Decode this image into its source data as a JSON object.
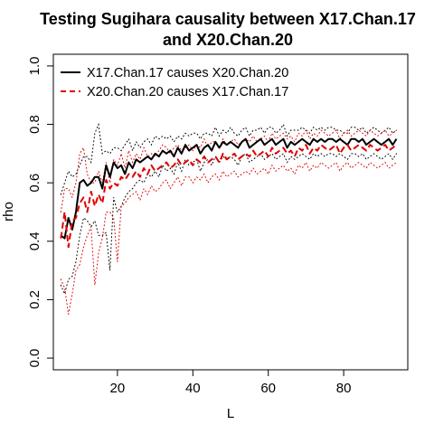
{
  "chart_data": {
    "type": "line",
    "title": "Testing Sugihara causality between  X17.Chan.17",
    "title_line2": "and X20.Chan.20",
    "xlabel": "L",
    "ylabel": "rho",
    "xlim": [
      3,
      97
    ],
    "ylim": [
      -0.04,
      1.04
    ],
    "xticks": [
      20,
      40,
      60,
      80
    ],
    "yticks": [
      0.0,
      0.2,
      0.4,
      0.6,
      0.8,
      1.0
    ],
    "xtick_labels": [
      "20",
      "40",
      "60",
      "80"
    ],
    "ytick_labels": [
      "0.0",
      "0.2",
      "0.4",
      "0.6",
      "0.8",
      "1.0"
    ],
    "grid": false,
    "legend_position": "top-left",
    "x": [
      5,
      6,
      7,
      8,
      9,
      10,
      11,
      12,
      13,
      14,
      15,
      16,
      17,
      18,
      19,
      20,
      21,
      22,
      23,
      24,
      25,
      26,
      27,
      28,
      29,
      30,
      31,
      32,
      33,
      34,
      35,
      36,
      37,
      38,
      39,
      40,
      41,
      42,
      43,
      44,
      45,
      46,
      47,
      48,
      49,
      50,
      51,
      52,
      53,
      54,
      55,
      56,
      57,
      58,
      59,
      60,
      61,
      62,
      63,
      64,
      65,
      66,
      67,
      68,
      69,
      70,
      71,
      72,
      73,
      74,
      75,
      76,
      77,
      78,
      79,
      80,
      81,
      82,
      83,
      84,
      85,
      86,
      87,
      88,
      89,
      90,
      91,
      92,
      93,
      94
    ],
    "series": [
      {
        "name": "X17.Chan.17 causes X20.Chan.20",
        "color": "#000000",
        "style": "solid",
        "mean": [
          0.42,
          0.41,
          0.48,
          0.44,
          0.5,
          0.6,
          0.61,
          0.59,
          0.6,
          0.62,
          0.62,
          0.58,
          0.66,
          0.62,
          0.67,
          0.65,
          0.66,
          0.63,
          0.67,
          0.65,
          0.68,
          0.67,
          0.68,
          0.69,
          0.68,
          0.7,
          0.69,
          0.71,
          0.7,
          0.71,
          0.69,
          0.72,
          0.7,
          0.73,
          0.71,
          0.72,
          0.73,
          0.7,
          0.72,
          0.73,
          0.71,
          0.74,
          0.72,
          0.74,
          0.73,
          0.74,
          0.73,
          0.72,
          0.74,
          0.75,
          0.72,
          0.73,
          0.74,
          0.75,
          0.73,
          0.74,
          0.75,
          0.73,
          0.74,
          0.75,
          0.72,
          0.74,
          0.73,
          0.74,
          0.75,
          0.74,
          0.73,
          0.75,
          0.74,
          0.75,
          0.74,
          0.75,
          0.75,
          0.74,
          0.75,
          0.74,
          0.73,
          0.75,
          0.75,
          0.74,
          0.75,
          0.73,
          0.74,
          0.75,
          0.74,
          0.73,
          0.74,
          0.75,
          0.73,
          0.75
        ],
        "upper": [
          0.56,
          0.6,
          0.64,
          0.62,
          0.63,
          0.66,
          0.69,
          0.69,
          0.67,
          0.77,
          0.8,
          0.7,
          0.71,
          0.7,
          0.72,
          0.72,
          0.71,
          0.73,
          0.75,
          0.71,
          0.74,
          0.72,
          0.74,
          0.75,
          0.73,
          0.76,
          0.75,
          0.76,
          0.75,
          0.76,
          0.74,
          0.76,
          0.75,
          0.77,
          0.76,
          0.77,
          0.77,
          0.75,
          0.77,
          0.77,
          0.76,
          0.79,
          0.76,
          0.78,
          0.77,
          0.79,
          0.77,
          0.76,
          0.78,
          0.79,
          0.76,
          0.78,
          0.78,
          0.79,
          0.77,
          0.79,
          0.79,
          0.77,
          0.78,
          0.8,
          0.76,
          0.78,
          0.78,
          0.78,
          0.79,
          0.78,
          0.77,
          0.79,
          0.78,
          0.79,
          0.78,
          0.79,
          0.79,
          0.78,
          0.78,
          0.77,
          0.77,
          0.79,
          0.79,
          0.78,
          0.79,
          0.77,
          0.78,
          0.79,
          0.78,
          0.77,
          0.78,
          0.79,
          0.77,
          0.78
        ],
        "lower": [
          0.25,
          0.22,
          0.27,
          0.28,
          0.33,
          0.42,
          0.48,
          0.47,
          0.45,
          0.47,
          0.42,
          0.42,
          0.43,
          0.3,
          0.55,
          0.5,
          0.52,
          0.55,
          0.57,
          0.58,
          0.6,
          0.61,
          0.6,
          0.63,
          0.62,
          0.64,
          0.62,
          0.66,
          0.64,
          0.65,
          0.63,
          0.67,
          0.64,
          0.68,
          0.66,
          0.67,
          0.68,
          0.64,
          0.67,
          0.68,
          0.66,
          0.69,
          0.67,
          0.69,
          0.68,
          0.69,
          0.68,
          0.66,
          0.69,
          0.7,
          0.67,
          0.68,
          0.69,
          0.7,
          0.68,
          0.69,
          0.7,
          0.68,
          0.69,
          0.7,
          0.67,
          0.69,
          0.68,
          0.69,
          0.7,
          0.69,
          0.68,
          0.7,
          0.69,
          0.7,
          0.69,
          0.7,
          0.7,
          0.69,
          0.7,
          0.69,
          0.68,
          0.7,
          0.7,
          0.69,
          0.7,
          0.68,
          0.69,
          0.7,
          0.69,
          0.68,
          0.69,
          0.7,
          0.68,
          0.7
        ]
      },
      {
        "name": "X20.Chan.20 causes X17.Chan.17",
        "color": "#DF0000",
        "style": "dashed",
        "mean": [
          0.41,
          0.5,
          0.38,
          0.47,
          0.48,
          0.53,
          0.55,
          0.5,
          0.57,
          0.52,
          0.56,
          0.53,
          0.61,
          0.58,
          0.6,
          0.59,
          0.62,
          0.61,
          0.63,
          0.62,
          0.64,
          0.62,
          0.65,
          0.63,
          0.66,
          0.64,
          0.65,
          0.66,
          0.67,
          0.65,
          0.66,
          0.68,
          0.66,
          0.67,
          0.68,
          0.66,
          0.68,
          0.67,
          0.69,
          0.67,
          0.68,
          0.69,
          0.67,
          0.7,
          0.68,
          0.69,
          0.7,
          0.68,
          0.69,
          0.7,
          0.69,
          0.71,
          0.69,
          0.7,
          0.71,
          0.69,
          0.72,
          0.7,
          0.71,
          0.72,
          0.7,
          0.71,
          0.69,
          0.72,
          0.71,
          0.73,
          0.7,
          0.72,
          0.71,
          0.73,
          0.72,
          0.71,
          0.72,
          0.73,
          0.7,
          0.72,
          0.73,
          0.71,
          0.72,
          0.73,
          0.72,
          0.71,
          0.73,
          0.72,
          0.71,
          0.72,
          0.73,
          0.71,
          0.72,
          0.73
        ],
        "upper": [
          0.5,
          0.58,
          0.58,
          0.55,
          0.6,
          0.7,
          0.72,
          0.63,
          0.6,
          0.6,
          0.64,
          0.6,
          0.67,
          0.6,
          0.68,
          0.66,
          0.7,
          0.65,
          0.71,
          0.67,
          0.7,
          0.68,
          0.72,
          0.69,
          0.7,
          0.69,
          0.71,
          0.73,
          0.72,
          0.7,
          0.72,
          0.73,
          0.71,
          0.72,
          0.73,
          0.71,
          0.73,
          0.72,
          0.75,
          0.72,
          0.74,
          0.74,
          0.72,
          0.75,
          0.73,
          0.74,
          0.75,
          0.73,
          0.74,
          0.75,
          0.74,
          0.76,
          0.74,
          0.75,
          0.76,
          0.74,
          0.77,
          0.75,
          0.76,
          0.77,
          0.75,
          0.76,
          0.74,
          0.77,
          0.76,
          0.78,
          0.75,
          0.77,
          0.76,
          0.78,
          0.77,
          0.76,
          0.77,
          0.78,
          0.75,
          0.77,
          0.78,
          0.76,
          0.77,
          0.78,
          0.77,
          0.76,
          0.78,
          0.77,
          0.76,
          0.77,
          0.78,
          0.76,
          0.77,
          0.78
        ],
        "lower": [
          0.27,
          0.24,
          0.15,
          0.22,
          0.3,
          0.32,
          0.38,
          0.42,
          0.45,
          0.25,
          0.36,
          0.41,
          0.5,
          0.5,
          0.48,
          0.33,
          0.52,
          0.53,
          0.55,
          0.56,
          0.57,
          0.54,
          0.58,
          0.56,
          0.59,
          0.57,
          0.58,
          0.6,
          0.61,
          0.58,
          0.6,
          0.62,
          0.59,
          0.62,
          0.62,
          0.6,
          0.62,
          0.61,
          0.63,
          0.6,
          0.62,
          0.63,
          0.61,
          0.64,
          0.62,
          0.63,
          0.64,
          0.62,
          0.63,
          0.64,
          0.63,
          0.65,
          0.63,
          0.64,
          0.65,
          0.63,
          0.66,
          0.64,
          0.65,
          0.66,
          0.64,
          0.65,
          0.63,
          0.66,
          0.65,
          0.67,
          0.64,
          0.66,
          0.65,
          0.67,
          0.66,
          0.65,
          0.66,
          0.67,
          0.64,
          0.66,
          0.67,
          0.65,
          0.66,
          0.67,
          0.66,
          0.65,
          0.67,
          0.66,
          0.65,
          0.66,
          0.67,
          0.65,
          0.66,
          0.67
        ]
      }
    ]
  }
}
